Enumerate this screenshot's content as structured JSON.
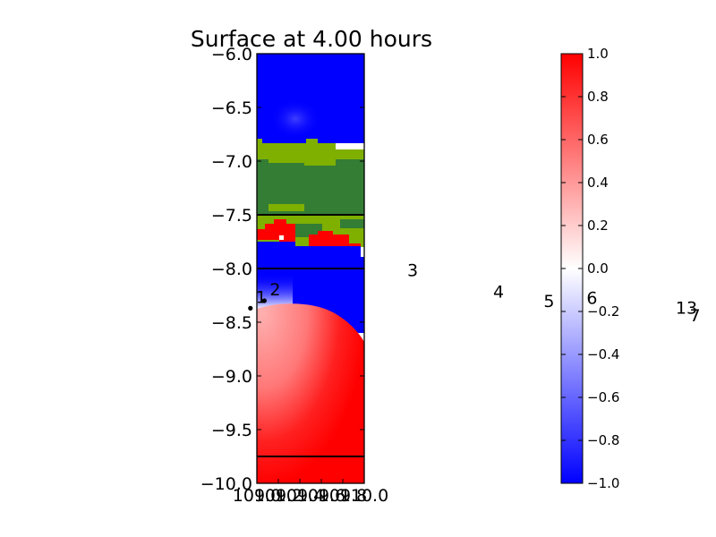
{
  "chart_data": {
    "type": "heatmap",
    "title": "Surface at 4.00 hours",
    "xlabel": "",
    "ylabel": "",
    "xlim": [
      109.0,
      110.0
    ],
    "ylim": [
      -10.0,
      -6.0
    ],
    "x_tick_labels": [
      "109.0",
      "109.2",
      "109.4",
      "109.6",
      "109.8",
      "110.0"
    ],
    "y_ticks": [
      -10.0,
      -9.5,
      -9.0,
      -8.5,
      -8.0,
      -7.5,
      -7.0,
      -6.5,
      -6.0
    ],
    "y_tick_labels": [
      "−10.0",
      "−9.5",
      "−9.0",
      "−8.5",
      "−8.0",
      "−7.5",
      "−7.0",
      "−6.5",
      "−6.0"
    ],
    "grid": false,
    "horizontal_lines_y": [
      -7.5,
      -8.0,
      -9.75
    ],
    "colorbar": {
      "range": [
        -1.0,
        1.0
      ],
      "ticks": [
        -1.0,
        -0.8,
        -0.6,
        -0.4,
        -0.2,
        0.0,
        0.2,
        0.4,
        0.6,
        0.8,
        1.0
      ],
      "tick_labels": [
        "−1.0",
        "−0.8",
        "−0.6",
        "−0.4",
        "−0.2",
        "0.0",
        "0.2",
        "0.4",
        "0.6",
        "0.8",
        "1.0"
      ],
      "colormap": [
        "#0000ff",
        "#ffffff",
        "#ff0000"
      ]
    },
    "regions": [
      {
        "kind": "water",
        "y_from": -6.0,
        "y_to": -6.82,
        "value": -1.0
      },
      {
        "kind": "land-light",
        "y_from": -6.82,
        "y_to": -7.02,
        "color": "#7fb000"
      },
      {
        "kind": "land-dark",
        "y_from": -7.02,
        "y_to": -7.5,
        "color": "#347d35"
      },
      {
        "kind": "mixed-red",
        "y_from": -7.5,
        "y_to": -7.8,
        "value": 1.0
      },
      {
        "kind": "water",
        "y_from": -7.8,
        "y_to": -8.32,
        "value": -1.0
      },
      {
        "kind": "water",
        "y_from": -8.32,
        "y_to": -10.0,
        "value": 1.0
      }
    ],
    "gauges": [
      {
        "label": "1",
        "x": 109.04,
        "y": -8.32
      },
      {
        "label": "2",
        "x": 109.17,
        "y": -8.25
      },
      {
        "label": "3",
        "x": 110.45,
        "y": -8.07
      },
      {
        "label": "4",
        "x": 111.25,
        "y": -8.27
      },
      {
        "label": "5",
        "x": 111.72,
        "y": -8.36
      },
      {
        "label": "6",
        "x": 112.12,
        "y": -8.33
      },
      {
        "label": "13",
        "x": 113.0,
        "y": -8.42
      },
      {
        "label": "7",
        "x": 113.08,
        "y": -8.49
      }
    ]
  }
}
